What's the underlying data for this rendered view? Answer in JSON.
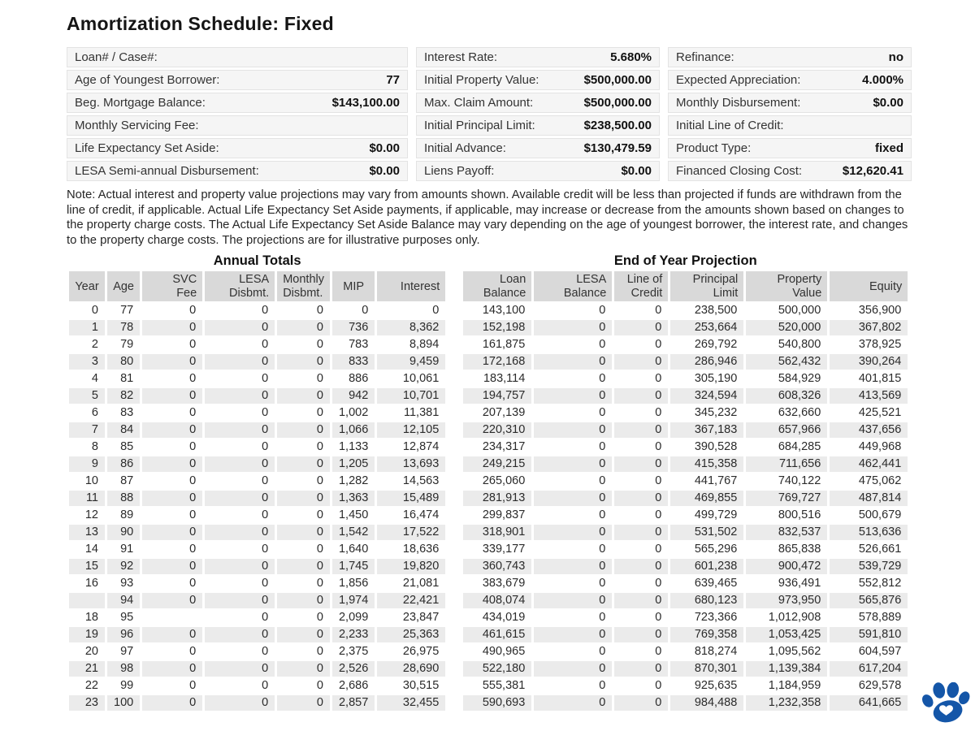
{
  "title": "Amortization Schedule: Fixed",
  "info_boxes": {
    "left": [
      {
        "label": "Loan# / Case#:",
        "value": ""
      },
      {
        "label": "Age of Youngest Borrower:",
        "value": "77"
      },
      {
        "label": "Beg. Mortgage Balance:",
        "value": "$143,100.00"
      },
      {
        "label": "Monthly Servicing Fee:",
        "value": ""
      },
      {
        "label": "Life Expectancy Set Aside:",
        "value": "$0.00"
      },
      {
        "label": "LESA Semi-annual Disbursement:",
        "value": "$0.00"
      }
    ],
    "middle": [
      {
        "label": "Interest Rate:",
        "value": "5.680%"
      },
      {
        "label": "Initial Property Value:",
        "value": "$500,000.00"
      },
      {
        "label": "Max. Claim Amount:",
        "value": "$500,000.00"
      },
      {
        "label": "Initial Principal Limit:",
        "value": "$238,500.00"
      },
      {
        "label": "Initial Advance:",
        "value": "$130,479.59"
      },
      {
        "label": "Liens Payoff:",
        "value": "$0.00"
      }
    ],
    "right": [
      {
        "label": "Refinance:",
        "value": "no"
      },
      {
        "label": "Expected Appreciation:",
        "value": "4.000%"
      },
      {
        "label": "Monthly Disbursement:",
        "value": "$0.00"
      },
      {
        "label": "Initial Line of Credit:",
        "value": ""
      },
      {
        "label": "Product Type:",
        "value": "fixed"
      },
      {
        "label": "Financed Closing Cost:",
        "value": "$12,620.41"
      }
    ]
  },
  "note": "Note: Actual interest and property value projections may vary from amounts shown. Available credit will be less than projected if funds are withdrawn from the line of credit, if applicable. Actual Life Expectancy Set Aside payments, if applicable, may increase or decrease from the amounts shown based on changes to the property charge costs. The Actual Life Expectancy Set Aside Balance may vary depending on the age of youngest borrower, the interest rate, and changes to the property charge costs. The projections are for illustrative purposes only.",
  "table": {
    "group_left": "Annual Totals",
    "group_right": "End of Year Projection",
    "headers_left": [
      "Year",
      "Age",
      "SVC\nFee",
      "LESA\nDisbmt.",
      "Monthly\nDisbmt.",
      "MIP",
      "Interest"
    ],
    "headers_right": [
      "Loan\nBalance",
      "LESA\nBalance",
      "Line of\nCredit",
      "Principal\nLimit",
      "Property\nValue",
      "Equity"
    ],
    "rows": [
      [
        "0",
        "77",
        "0",
        "0",
        "0",
        "0",
        "0",
        "143,100",
        "0",
        "0",
        "238,500",
        "500,000",
        "356,900"
      ],
      [
        "1",
        "78",
        "0",
        "0",
        "0",
        "736",
        "8,362",
        "152,198",
        "0",
        "0",
        "253,664",
        "520,000",
        "367,802"
      ],
      [
        "2",
        "79",
        "0",
        "0",
        "0",
        "783",
        "8,894",
        "161,875",
        "0",
        "0",
        "269,792",
        "540,800",
        "378,925"
      ],
      [
        "3",
        "80",
        "0",
        "0",
        "0",
        "833",
        "9,459",
        "172,168",
        "0",
        "0",
        "286,946",
        "562,432",
        "390,264"
      ],
      [
        "4",
        "81",
        "0",
        "0",
        "0",
        "886",
        "10,061",
        "183,114",
        "0",
        "0",
        "305,190",
        "584,929",
        "401,815"
      ],
      [
        "5",
        "82",
        "0",
        "0",
        "0",
        "942",
        "10,701",
        "194,757",
        "0",
        "0",
        "324,594",
        "608,326",
        "413,569"
      ],
      [
        "6",
        "83",
        "0",
        "0",
        "0",
        "1,002",
        "11,381",
        "207,139",
        "0",
        "0",
        "345,232",
        "632,660",
        "425,521"
      ],
      [
        "7",
        "84",
        "0",
        "0",
        "0",
        "1,066",
        "12,105",
        "220,310",
        "0",
        "0",
        "367,183",
        "657,966",
        "437,656"
      ],
      [
        "8",
        "85",
        "0",
        "0",
        "0",
        "1,133",
        "12,874",
        "234,317",
        "0",
        "0",
        "390,528",
        "684,285",
        "449,968"
      ],
      [
        "9",
        "86",
        "0",
        "0",
        "0",
        "1,205",
        "13,693",
        "249,215",
        "0",
        "0",
        "415,358",
        "711,656",
        "462,441"
      ],
      [
        "10",
        "87",
        "0",
        "0",
        "0",
        "1,282",
        "14,563",
        "265,060",
        "0",
        "0",
        "441,767",
        "740,122",
        "475,062"
      ],
      [
        "11",
        "88",
        "0",
        "0",
        "0",
        "1,363",
        "15,489",
        "281,913",
        "0",
        "0",
        "469,855",
        "769,727",
        "487,814"
      ],
      [
        "12",
        "89",
        "0",
        "0",
        "0",
        "1,450",
        "16,474",
        "299,837",
        "0",
        "0",
        "499,729",
        "800,516",
        "500,679"
      ],
      [
        "13",
        "90",
        "0",
        "0",
        "0",
        "1,542",
        "17,522",
        "318,901",
        "0",
        "0",
        "531,502",
        "832,537",
        "513,636"
      ],
      [
        "14",
        "91",
        "0",
        "0",
        "0",
        "1,640",
        "18,636",
        "339,177",
        "0",
        "0",
        "565,296",
        "865,838",
        "526,661"
      ],
      [
        "15",
        "92",
        "0",
        "0",
        "0",
        "1,745",
        "19,820",
        "360,743",
        "0",
        "0",
        "601,238",
        "900,472",
        "539,729"
      ],
      [
        "16",
        "93",
        "0",
        "0",
        "0",
        "1,856",
        "21,081",
        "383,679",
        "0",
        "0",
        "639,465",
        "936,491",
        "552,812"
      ],
      [
        "",
        "94",
        "0",
        "0",
        "0",
        "1,974",
        "22,421",
        "408,074",
        "0",
        "0",
        "680,123",
        "973,950",
        "565,876"
      ],
      [
        "18",
        "95",
        "",
        "0",
        "0",
        "2,099",
        "23,847",
        "434,019",
        "0",
        "0",
        "723,366",
        "1,012,908",
        "578,889"
      ],
      [
        "19",
        "96",
        "0",
        "0",
        "0",
        "2,233",
        "25,363",
        "461,615",
        "0",
        "0",
        "769,358",
        "1,053,425",
        "591,810"
      ],
      [
        "20",
        "97",
        "0",
        "0",
        "0",
        "2,375",
        "26,975",
        "490,965",
        "0",
        "0",
        "818,274",
        "1,095,562",
        "604,597"
      ],
      [
        "21",
        "98",
        "0",
        "0",
        "0",
        "2,526",
        "28,690",
        "522,180",
        "0",
        "0",
        "870,301",
        "1,139,384",
        "617,204"
      ],
      [
        "22",
        "99",
        "0",
        "0",
        "0",
        "2,686",
        "30,515",
        "555,381",
        "0",
        "0",
        "925,635",
        "1,184,959",
        "629,578"
      ],
      [
        "23",
        "100",
        "0",
        "0",
        "0",
        "2,857",
        "32,455",
        "590,693",
        "0",
        "0",
        "984,488",
        "1,232,358",
        "641,665"
      ]
    ]
  },
  "logo": {
    "name": "paw-with-heart",
    "color": "#1456A8"
  },
  "colors": {
    "table_header_bg": "#D9D9D9",
    "row_stripe_bg": "#EBEBEB",
    "info_box_bg": "#F5F5F5",
    "logo_blue": "#1456A8"
  }
}
